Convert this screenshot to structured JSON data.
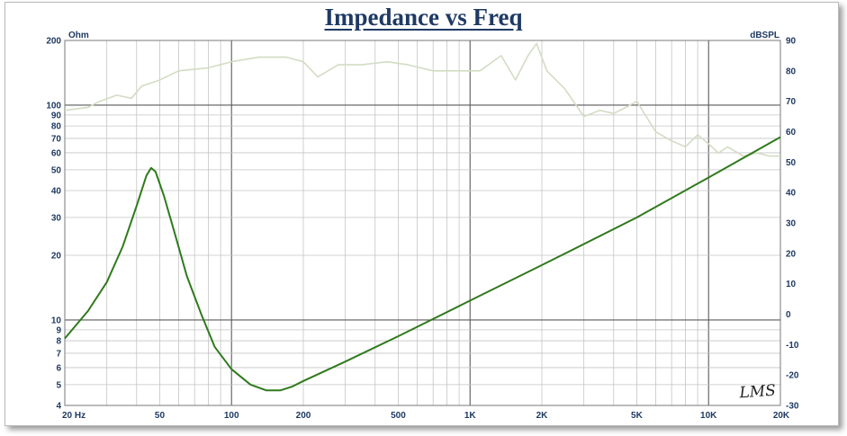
{
  "chart_data": {
    "type": "line",
    "title": "Impedance vs Freq",
    "watermark": "LMS",
    "x_axis": {
      "scale": "log",
      "range": [
        20,
        20000
      ],
      "ticks": [
        "20  Hz",
        "50",
        "100",
        "200",
        "500",
        "1K",
        "2K",
        "5K",
        "10K",
        "20K"
      ],
      "tick_values": [
        20,
        50,
        100,
        200,
        500,
        1000,
        2000,
        5000,
        10000,
        20000
      ]
    },
    "y_left": {
      "unit": "Ohm",
      "scale": "log",
      "range": [
        4,
        200
      ],
      "ticks": [
        "200",
        "100",
        "90",
        "80",
        "70",
        "60",
        "50",
        "40",
        "30",
        "20",
        "10",
        "9",
        "8",
        "7",
        "6",
        "5",
        "4"
      ],
      "tick_values": [
        200,
        100,
        90,
        80,
        70,
        60,
        50,
        40,
        30,
        20,
        10,
        9,
        8,
        7,
        6,
        5,
        4
      ]
    },
    "y_right": {
      "unit": "dBSPL",
      "scale": "linear",
      "range": [
        -30,
        90
      ],
      "ticks": [
        "90",
        "80",
        "70",
        "60",
        "50",
        "40",
        "30",
        "20",
        "10",
        "0",
        "-10",
        "-20",
        "-30"
      ],
      "tick_values": [
        90,
        80,
        70,
        60,
        50,
        40,
        30,
        20,
        10,
        0,
        -10,
        -20,
        -30
      ]
    },
    "grid": true,
    "series": [
      {
        "axis": "left",
        "color": "#2f7a1c",
        "points": [
          [
            20,
            8.2
          ],
          [
            25,
            11
          ],
          [
            30,
            15
          ],
          [
            35,
            22
          ],
          [
            40,
            34
          ],
          [
            44,
            47
          ],
          [
            46,
            51
          ],
          [
            48,
            49
          ],
          [
            52,
            38
          ],
          [
            58,
            25
          ],
          [
            65,
            16
          ],
          [
            75,
            10.5
          ],
          [
            85,
            7.5
          ],
          [
            100,
            5.9
          ],
          [
            120,
            5.0
          ],
          [
            140,
            4.7
          ],
          [
            160,
            4.7
          ],
          [
            180,
            4.9
          ],
          [
            200,
            5.2
          ],
          [
            300,
            6.4
          ],
          [
            500,
            8.4
          ],
          [
            1000,
            12.3
          ],
          [
            2000,
            18
          ],
          [
            5000,
            30
          ],
          [
            10000,
            46
          ],
          [
            20000,
            71
          ]
        ]
      },
      {
        "axis": "right",
        "color": "#d3dcc4",
        "points": [
          [
            20,
            67
          ],
          [
            25,
            68
          ],
          [
            28,
            70
          ],
          [
            33,
            72
          ],
          [
            38,
            71
          ],
          [
            42,
            75
          ],
          [
            50,
            77
          ],
          [
            60,
            80
          ],
          [
            80,
            81
          ],
          [
            100,
            83
          ],
          [
            130,
            84.5
          ],
          [
            170,
            84.5
          ],
          [
            200,
            83
          ],
          [
            230,
            78
          ],
          [
            280,
            82
          ],
          [
            350,
            82
          ],
          [
            450,
            83
          ],
          [
            550,
            82
          ],
          [
            700,
            80
          ],
          [
            900,
            80
          ],
          [
            1100,
            80
          ],
          [
            1350,
            85
          ],
          [
            1550,
            77
          ],
          [
            1750,
            85
          ],
          [
            1900,
            89
          ],
          [
            2100,
            80
          ],
          [
            2500,
            74
          ],
          [
            3000,
            65
          ],
          [
            3500,
            67
          ],
          [
            4000,
            66
          ],
          [
            4500,
            68
          ],
          [
            5000,
            70
          ],
          [
            6000,
            60
          ],
          [
            7000,
            57
          ],
          [
            8000,
            55
          ],
          [
            9000,
            59
          ],
          [
            10000,
            56
          ],
          [
            11000,
            53
          ],
          [
            12000,
            55
          ],
          [
            14000,
            52
          ],
          [
            16000,
            53
          ],
          [
            18000,
            52
          ],
          [
            20000,
            52
          ]
        ]
      }
    ]
  }
}
